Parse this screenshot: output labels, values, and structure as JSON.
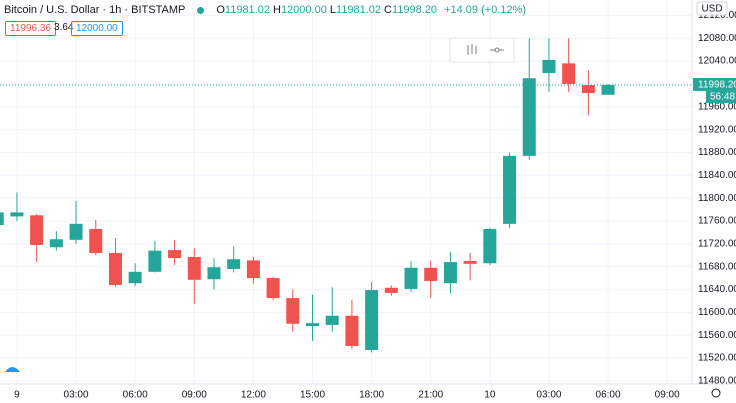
{
  "header": {
    "symbol": "Bitcoin / U.S. Dollar · 1h · BITSTAMP",
    "ohlc": [
      {
        "label": "O",
        "value": "11981.02"
      },
      {
        "label": "H",
        "value": "12000.00"
      },
      {
        "label": "L",
        "value": "11981.02"
      },
      {
        "label": "C",
        "value": "11998.20"
      }
    ],
    "change": "+14.09 (+0.12%)",
    "bid": "11996.36",
    "spread": "3.64",
    "ask": "12000.00",
    "countdown": "56:48",
    "currency": "USD"
  },
  "chart_data": {
    "type": "candlestick",
    "up_color": "#26a69a",
    "down_color": "#ef5350",
    "x": [
      -1,
      0,
      1,
      2,
      3,
      4,
      5,
      6,
      7,
      8,
      9,
      10,
      11,
      12,
      13,
      14,
      15,
      16,
      17,
      18,
      19,
      20,
      21,
      22,
      23,
      24,
      25,
      26,
      27,
      28,
      29,
      30
    ],
    "open": [
      11753,
      11768,
      11770,
      11714,
      11727,
      11746,
      11704,
      11651,
      11671,
      11709,
      11697,
      11658,
      11676,
      11691,
      11660,
      11625,
      11576,
      11578,
      11594,
      11534,
      11643,
      11641,
      11678,
      11651,
      11690,
      11686,
      11755,
      11874,
      12019,
      12036,
      11998,
      11981.02
    ],
    "high": [
      11790,
      11810,
      11772,
      11742,
      11795,
      11762,
      11730,
      11686,
      11725,
      11727,
      11712,
      11695,
      11715,
      11697,
      11662,
      11640,
      11631,
      11644,
      11622,
      11653,
      11647,
      11690,
      11690,
      11706,
      11704,
      11748,
      11880,
      12080,
      12080,
      12080,
      12024,
      12000
    ],
    "low": [
      11745,
      11760,
      11688,
      11708,
      11720,
      11700,
      11645,
      11646,
      11670,
      11683,
      11615,
      11640,
      11670,
      11650,
      11621,
      11566,
      11550,
      11566,
      11536,
      11530,
      11629,
      11636,
      11625,
      11633,
      11656,
      11683,
      11748,
      11867,
      11986,
      11986,
      11945,
      11981.02
    ],
    "close": [
      11775,
      11775,
      11718,
      11728,
      11755,
      11704,
      11648,
      11671,
      11708,
      11695,
      11657,
      11679,
      11693,
      11660,
      11625,
      11580,
      11581,
      11594,
      11541,
      11639,
      11634,
      11678,
      11655,
      11688,
      11685,
      11746,
      11874,
      12010,
      12042,
      12000,
      11984,
      11998.2
    ],
    "last_price": {
      "value": 11998.2,
      "label": "11998.20"
    },
    "xlim": [
      -0.86,
      34.26
    ],
    "xticks": [
      {
        "value": 0,
        "label": "9"
      },
      {
        "value": 3,
        "label": "03:00"
      },
      {
        "value": 6,
        "label": "06:00"
      },
      {
        "value": 9,
        "label": "09:00"
      },
      {
        "value": 12,
        "label": "12:00"
      },
      {
        "value": 15,
        "label": "15:00"
      },
      {
        "value": 18,
        "label": "18:00"
      },
      {
        "value": 21,
        "label": "21:00"
      },
      {
        "value": 24,
        "label": "10"
      },
      {
        "value": 27,
        "label": "03:00"
      },
      {
        "value": 30,
        "label": "06:00"
      },
      {
        "value": 33,
        "label": "09:00"
      }
    ],
    "ylim": [
      11464,
      12147
    ],
    "yticks": [
      {
        "value": 11480,
        "label": "11480.00"
      },
      {
        "value": 11520,
        "label": "11520.00"
      },
      {
        "value": 11560,
        "label": "11560.00"
      },
      {
        "value": 11600,
        "label": "11600.00"
      },
      {
        "value": 11640,
        "label": "11640.00"
      },
      {
        "value": 11680,
        "label": "11680.00"
      },
      {
        "value": 11720,
        "label": "11720.00"
      },
      {
        "value": 11760,
        "label": "11760.00"
      },
      {
        "value": 11800,
        "label": "11800.00"
      },
      {
        "value": 11840,
        "label": "11840.00"
      },
      {
        "value": 11880,
        "label": "11880.00"
      },
      {
        "value": 11920,
        "label": "11920.00"
      },
      {
        "value": 11960,
        "label": "11960.00"
      },
      {
        "value": 12000,
        "label": "12000.00"
      },
      {
        "value": 12040,
        "label": "12040.00"
      },
      {
        "value": 12080,
        "label": "12080.00"
      },
      {
        "value": 12120,
        "label": "12120.00"
      }
    ],
    "grid": true
  }
}
